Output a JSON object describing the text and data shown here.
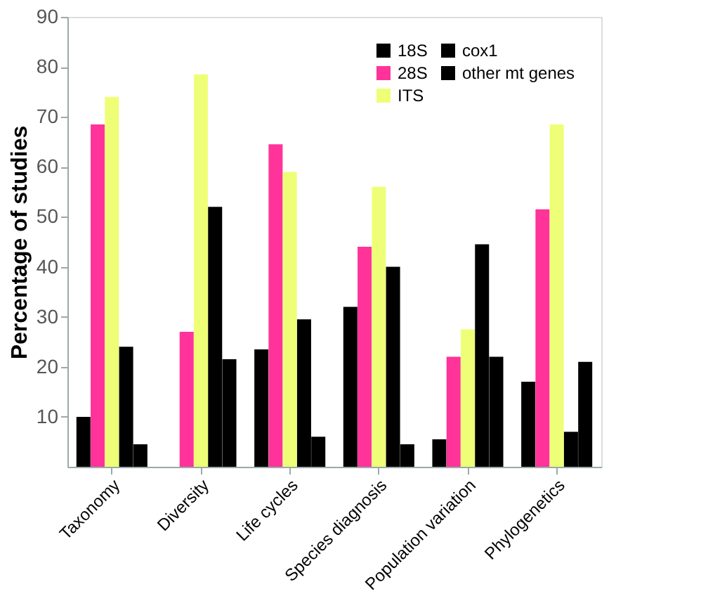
{
  "chart_data": {
    "type": "bar",
    "ylabel": "Percentage of studies",
    "categories": [
      "Taxonomy",
      "Diversity",
      "Life cycles",
      "Species diagnosis",
      "Population variation",
      "Phylogenetics"
    ],
    "series": [
      {
        "name": "18S",
        "color": "#000000",
        "values": [
          10,
          0,
          23.5,
          32,
          5.5,
          17
        ]
      },
      {
        "name": "28S",
        "color": "#ff3399",
        "values": [
          68.5,
          27,
          64.5,
          44,
          22,
          51.5
        ]
      },
      {
        "name": "ITS",
        "color": "#eeff77",
        "values": [
          74,
          78.5,
          59,
          56,
          27.5,
          68.5
        ]
      },
      {
        "name": "cox1",
        "color": "#000000",
        "values": [
          24,
          52,
          29.5,
          40,
          44.5,
          7
        ]
      },
      {
        "name": "other mt genes",
        "color": "#000000",
        "values": [
          4.5,
          21.5,
          6,
          4.5,
          22,
          21
        ]
      }
    ],
    "ylim": [
      0,
      90
    ],
    "yticks": [
      10,
      20,
      30,
      40,
      50,
      60,
      70,
      80,
      90
    ],
    "grid": false,
    "legend": "top right"
  }
}
